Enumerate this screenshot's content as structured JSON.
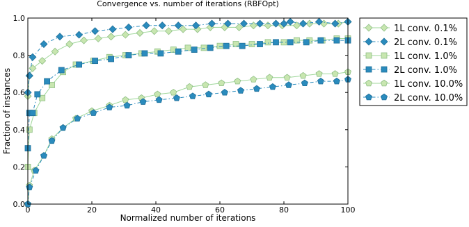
{
  "chart_data": {
    "type": "line",
    "title": "Convergence vs. number of iterations (RBFOpt)",
    "xlabel": "Normalized number of iterations",
    "ylabel": "Fraction of instances",
    "xlim": [
      0,
      100
    ],
    "ylim": [
      0.0,
      1.0
    ],
    "x_ticks": [
      "0",
      "20",
      "40",
      "60",
      "80",
      "100"
    ],
    "y_ticks": [
      "0.0",
      "0.2",
      "0.4",
      "0.6",
      "0.8",
      "1.0"
    ],
    "grid": false,
    "legend_position": "outside right",
    "series": [
      {
        "name": "1L conv. 0.1%",
        "marker": "diamond",
        "line": "solid",
        "color": "#9fd79a",
        "fill": "#c8e6b0",
        "x": [
          0,
          0.5,
          1.5,
          4.5,
          8.5,
          13,
          17.5,
          22,
          26,
          30.5,
          35,
          39.5,
          44,
          48.5,
          53,
          57,
          61.5,
          66,
          70.5,
          75,
          79.5,
          84,
          88,
          92.5,
          97,
          100
        ],
        "y": [
          0.58,
          0.69,
          0.73,
          0.77,
          0.82,
          0.86,
          0.88,
          0.89,
          0.9,
          0.91,
          0.92,
          0.93,
          0.93,
          0.94,
          0.94,
          0.95,
          0.95,
          0.95,
          0.96,
          0.96,
          0.96,
          0.96,
          0.97,
          0.97,
          0.97,
          0.98
        ]
      },
      {
        "name": "2L conv. 0.1%",
        "marker": "diamond",
        "line": "dashdot",
        "color": "#2a8bbd",
        "fill": "#2a8bbd",
        "x": [
          0,
          0.5,
          1.5,
          5,
          10,
          16,
          21,
          26.5,
          31.5,
          37,
          42,
          47,
          52.5,
          57.5,
          62.5,
          67.5,
          72.5,
          77.5,
          80,
          82,
          86,
          91,
          96,
          100
        ],
        "y": [
          0.6,
          0.69,
          0.79,
          0.86,
          0.9,
          0.91,
          0.93,
          0.94,
          0.95,
          0.96,
          0.96,
          0.96,
          0.96,
          0.97,
          0.97,
          0.97,
          0.97,
          0.97,
          0.97,
          0.98,
          0.97,
          0.98,
          0.97,
          0.98
        ]
      },
      {
        "name": "1L conv. 1.0%",
        "marker": "square",
        "line": "solid",
        "color": "#9fd79a",
        "fill": "#c8e6b0",
        "x": [
          0,
          0.5,
          2,
          4.5,
          7.5,
          11,
          15,
          20.5,
          25.5,
          30.5,
          35.5,
          40.5,
          45.5,
          50,
          55,
          60,
          65,
          70,
          75,
          80,
          84,
          88,
          92,
          96.5,
          100
        ],
        "y": [
          0.2,
          0.4,
          0.49,
          0.57,
          0.64,
          0.71,
          0.75,
          0.77,
          0.79,
          0.8,
          0.81,
          0.82,
          0.83,
          0.84,
          0.84,
          0.85,
          0.86,
          0.86,
          0.87,
          0.87,
          0.88,
          0.88,
          0.88,
          0.89,
          0.89
        ]
      },
      {
        "name": "2L conv. 1.0%",
        "marker": "square",
        "line": "dashdot",
        "color": "#2a8bbd",
        "fill": "#2a8bbd",
        "x": [
          0,
          0.5,
          1.5,
          3,
          6,
          10.5,
          16,
          21,
          26,
          31.5,
          36.5,
          41.5,
          47,
          52,
          57,
          62,
          67,
          72.5,
          77.5,
          82,
          87,
          91.5,
          96.5,
          100
        ],
        "y": [
          0.3,
          0.49,
          0.49,
          0.59,
          0.66,
          0.72,
          0.75,
          0.77,
          0.78,
          0.8,
          0.81,
          0.81,
          0.82,
          0.83,
          0.84,
          0.85,
          0.85,
          0.86,
          0.87,
          0.87,
          0.87,
          0.88,
          0.88,
          0.88
        ]
      },
      {
        "name": "1L conv. 10.0%",
        "marker": "pentagon",
        "line": "solid",
        "color": "#9fd79a",
        "fill": "#c8e6b0",
        "x": [
          0,
          0.5,
          2,
          5,
          7.5,
          11,
          15,
          20,
          25.5,
          30.5,
          35.5,
          40.5,
          45.5,
          50.5,
          55.5,
          60.5,
          65.5,
          70.5,
          75.5,
          81,
          86,
          91,
          96,
          100
        ],
        "y": [
          0.0,
          0.1,
          0.18,
          0.26,
          0.35,
          0.41,
          0.46,
          0.5,
          0.53,
          0.56,
          0.57,
          0.59,
          0.6,
          0.63,
          0.64,
          0.65,
          0.66,
          0.67,
          0.68,
          0.68,
          0.69,
          0.7,
          0.7,
          0.71
        ]
      },
      {
        "name": "2L conv. 10.0%",
        "marker": "pentagon",
        "line": "dashdot",
        "color": "#2a8bbd",
        "fill": "#2a8bbd",
        "x": [
          0,
          0.5,
          2.5,
          5,
          7.5,
          11,
          15.5,
          20.5,
          25.5,
          31,
          36,
          41,
          46.5,
          51.5,
          56.5,
          61.5,
          66.5,
          71.5,
          76.5,
          81.5,
          86.5,
          91.5,
          96.5,
          100
        ],
        "y": [
          0.0,
          0.09,
          0.18,
          0.26,
          0.34,
          0.41,
          0.46,
          0.49,
          0.52,
          0.53,
          0.55,
          0.56,
          0.57,
          0.58,
          0.59,
          0.6,
          0.61,
          0.62,
          0.63,
          0.64,
          0.65,
          0.66,
          0.66,
          0.67
        ]
      }
    ]
  }
}
